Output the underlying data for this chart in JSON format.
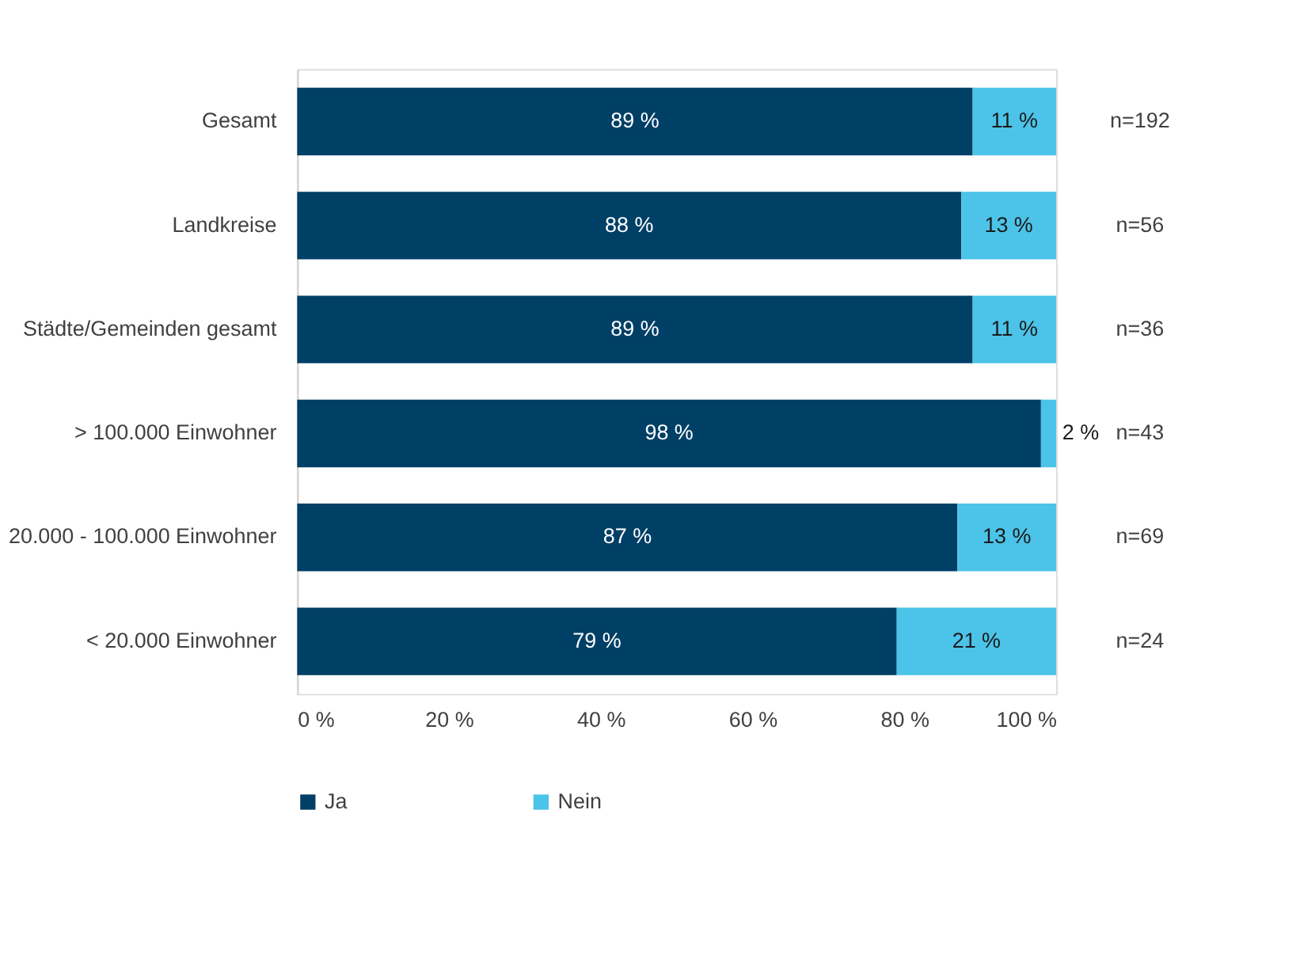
{
  "chart_data": {
    "type": "bar",
    "orientation": "horizontal",
    "stacked": true,
    "categories": [
      "Gesamt",
      "Landkreise",
      "Städte/Gemeinden gesamt",
      "> 100.000 Einwohner",
      "20.000 - 100.000 Einwohner",
      "< 20.000 Einwohner"
    ],
    "series": [
      {
        "name": "Ja",
        "color": "#003f66",
        "values": [
          89,
          87.5,
          89,
          98,
          87,
          79
        ],
        "value_labels": [
          "89 %",
          "88 %",
          "89 %",
          "98 %",
          "87 %",
          "79 %"
        ]
      },
      {
        "name": "Nein",
        "color": "#4cc3e8",
        "values": [
          11,
          12.5,
          11,
          2,
          13,
          21
        ],
        "value_labels": [
          "11 %",
          "13 %",
          "11 %",
          "2 %",
          "13 %",
          "21 %"
        ]
      }
    ],
    "xlim": [
      0,
      100
    ],
    "xticks": [
      {
        "value": 0,
        "label": "0 %"
      },
      {
        "value": 20,
        "label": "20 %"
      },
      {
        "value": 40,
        "label": "40 %"
      },
      {
        "value": 60,
        "label": "60 %"
      },
      {
        "value": 80,
        "label": "80 %"
      },
      {
        "value": 100,
        "label": "100 %"
      }
    ],
    "legend": "bottom",
    "grid": false,
    "annotations": [
      "n=192",
      "n=56",
      "n=36",
      "n=43",
      "n=69",
      "n=24"
    ]
  }
}
